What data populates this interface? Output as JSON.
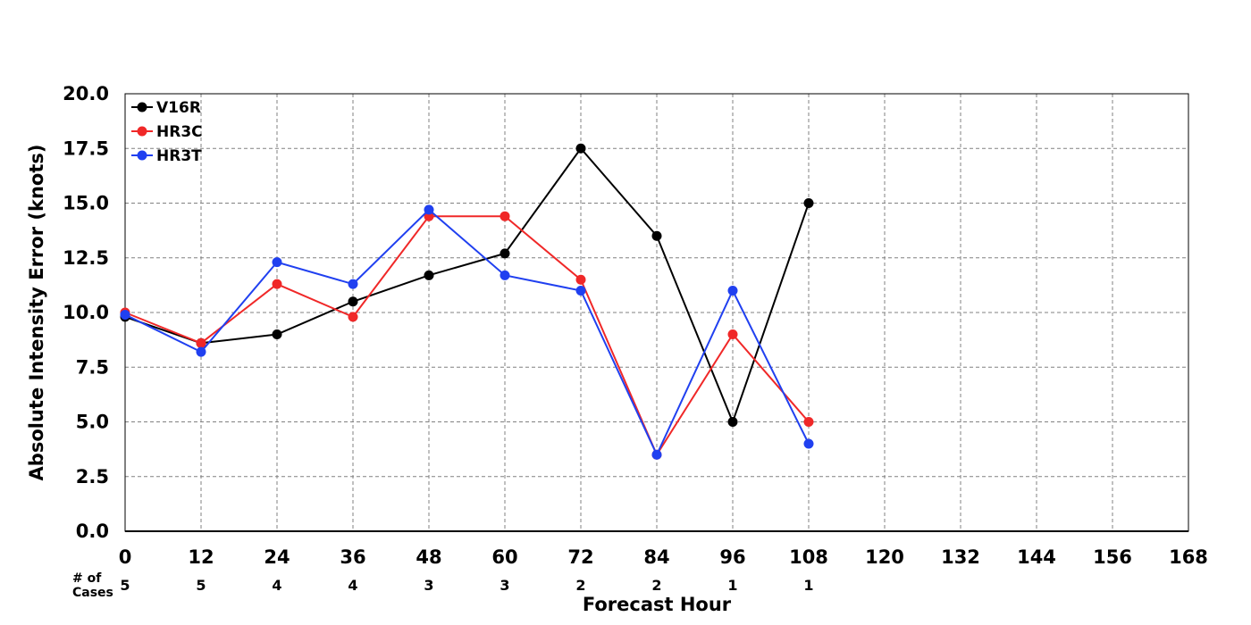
{
  "chart_data": {
    "type": "line",
    "title": "",
    "xlabel": "Forecast Hour",
    "ylabel": "Absolute Intensity Error (knots)",
    "xlim": [
      0,
      168
    ],
    "ylim": [
      0,
      20
    ],
    "x_ticks": [
      "0",
      "12",
      "24",
      "36",
      "48",
      "60",
      "72",
      "84",
      "96",
      "108",
      "120",
      "132",
      "144",
      "156",
      "168"
    ],
    "y_ticks": [
      "0.0",
      "2.5",
      "5.0",
      "7.5",
      "10.0",
      "12.5",
      "15.0",
      "17.5",
      "20.0"
    ],
    "grid": true,
    "legend_position": "top-left",
    "series": [
      {
        "name": "V16R",
        "color": "#000000",
        "x": [
          0,
          12,
          24,
          36,
          48,
          60,
          72,
          84,
          96,
          108
        ],
        "y": [
          9.8,
          8.6,
          9.0,
          10.5,
          11.7,
          12.7,
          17.5,
          13.5,
          5.0,
          15.0
        ]
      },
      {
        "name": "HR3C",
        "color": "#f02828",
        "x": [
          0,
          12,
          24,
          36,
          48,
          60,
          72,
          84,
          96,
          108
        ],
        "y": [
          10.0,
          8.6,
          11.3,
          9.8,
          14.4,
          14.4,
          11.5,
          3.5,
          9.0,
          5.0
        ]
      },
      {
        "name": "HR3T",
        "color": "#2040f0",
        "x": [
          0,
          12,
          24,
          36,
          48,
          60,
          72,
          84,
          96,
          108
        ],
        "y": [
          9.9,
          8.2,
          12.3,
          11.3,
          14.7,
          11.7,
          11.0,
          3.5,
          11.0,
          4.0
        ]
      }
    ],
    "cases": {
      "label_line1": "# of",
      "label_line2": "Cases",
      "x": [
        0,
        12,
        24,
        36,
        48,
        60,
        72,
        84,
        96,
        108
      ],
      "counts": [
        "5",
        "5",
        "4",
        "4",
        "3",
        "3",
        "2",
        "2",
        "1",
        "1"
      ]
    }
  }
}
